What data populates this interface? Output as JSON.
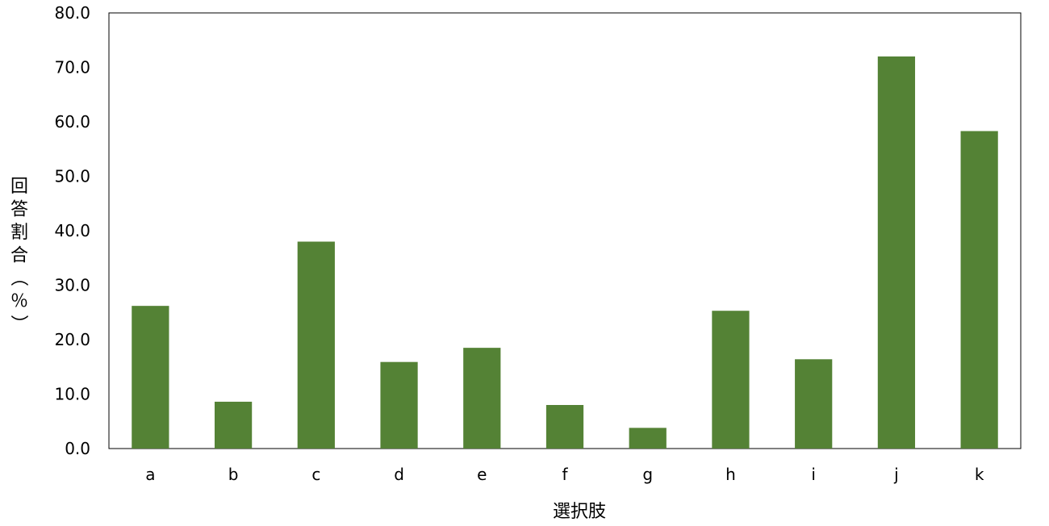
{
  "chart_data": {
    "type": "bar",
    "categories": [
      "a",
      "b",
      "c",
      "d",
      "e",
      "f",
      "g",
      "h",
      "i",
      "j",
      "k"
    ],
    "values": [
      26.2,
      8.6,
      38.0,
      15.9,
      18.5,
      8.0,
      3.8,
      25.3,
      16.4,
      72.0,
      58.3
    ],
    "title": "",
    "xlabel": "選択肢",
    "ylabel": "回答割合（％）",
    "ylim": [
      0,
      80
    ],
    "yticks": [
      "0.0",
      "10.0",
      "20.0",
      "30.0",
      "40.0",
      "50.0",
      "60.0",
      "70.0",
      "80.0"
    ],
    "grid": false,
    "legend": "none",
    "bar_color": "#548235"
  }
}
